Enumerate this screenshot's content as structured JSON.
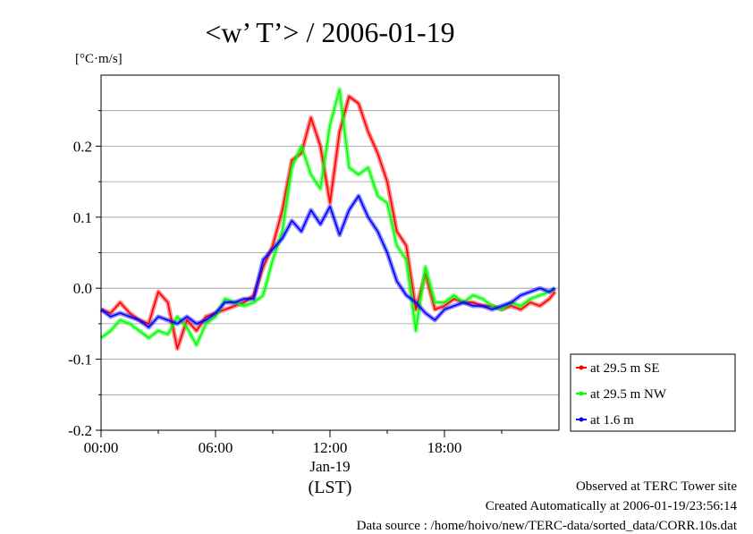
{
  "chart_data": {
    "type": "line",
    "title": "<w’ T’> / 2006-01-19",
    "ylabel": "[°C·m/s]",
    "xlabel": "(LST)",
    "date_label": "Jan-19",
    "x_ticks": [
      "00:00",
      "06:00",
      "12:00",
      "18:00"
    ],
    "y_ticks": [
      "-0.2",
      "-0.1",
      "0.0",
      "0.1",
      "0.2"
    ],
    "xlim": [
      0,
      24
    ],
    "ylim": [
      -0.2,
      0.3
    ],
    "grid": true,
    "legend_position": "right",
    "series": [
      {
        "name": "at 29.5 m SE",
        "color": "#ff0000",
        "x": [
          0,
          0.5,
          1,
          1.5,
          2,
          2.5,
          3,
          3.5,
          4,
          4.5,
          5,
          5.5,
          6,
          6.5,
          7,
          7.5,
          8,
          8.5,
          9,
          9.5,
          10,
          10.5,
          11,
          11.5,
          12,
          12.5,
          13,
          13.5,
          14,
          14.5,
          15,
          15.5,
          16,
          16.5,
          17,
          17.5,
          18,
          18.5,
          19,
          19.5,
          20,
          20.5,
          21,
          21.5,
          22,
          22.5,
          23,
          23.5,
          23.8
        ],
        "y": [
          -0.03,
          -0.035,
          -0.02,
          -0.035,
          -0.045,
          -0.05,
          -0.005,
          -0.02,
          -0.085,
          -0.045,
          -0.06,
          -0.04,
          -0.035,
          -0.03,
          -0.025,
          -0.02,
          -0.01,
          0.03,
          0.06,
          0.11,
          0.18,
          0.19,
          0.24,
          0.2,
          0.12,
          0.22,
          0.27,
          0.26,
          0.22,
          0.19,
          0.15,
          0.08,
          0.06,
          -0.03,
          0.02,
          -0.03,
          -0.025,
          -0.015,
          -0.02,
          -0.02,
          -0.025,
          -0.025,
          -0.03,
          -0.025,
          -0.03,
          -0.02,
          -0.025,
          -0.015,
          -0.005
        ]
      },
      {
        "name": "at 29.5 m NW",
        "color": "#00ff00",
        "x": [
          0,
          0.5,
          1,
          1.5,
          2,
          2.5,
          3,
          3.5,
          4,
          4.5,
          5,
          5.5,
          6,
          6.5,
          7,
          7.5,
          8,
          8.5,
          9,
          9.5,
          10,
          10.5,
          11,
          11.5,
          12,
          12.5,
          13,
          13.5,
          14,
          14.5,
          15,
          15.5,
          16,
          16.5,
          17,
          17.5,
          18,
          18.5,
          19,
          19.5,
          20,
          20.5,
          21,
          21.5,
          22,
          22.5,
          23,
          23.5,
          23.8
        ],
        "y": [
          -0.07,
          -0.06,
          -0.045,
          -0.05,
          -0.06,
          -0.07,
          -0.06,
          -0.065,
          -0.04,
          -0.055,
          -0.08,
          -0.05,
          -0.04,
          -0.015,
          -0.02,
          -0.025,
          -0.02,
          -0.01,
          0.04,
          0.08,
          0.17,
          0.2,
          0.16,
          0.14,
          0.23,
          0.28,
          0.17,
          0.16,
          0.17,
          0.13,
          0.12,
          0.06,
          0.04,
          -0.06,
          0.03,
          -0.02,
          -0.02,
          -0.01,
          -0.02,
          -0.01,
          -0.015,
          -0.025,
          -0.03,
          -0.02,
          -0.025,
          -0.015,
          -0.01,
          -0.005,
          0
        ]
      },
      {
        "name": "at 1.6 m",
        "color": "#0000ff",
        "x": [
          0,
          0.5,
          1,
          1.5,
          2,
          2.5,
          3,
          3.5,
          4,
          4.5,
          5,
          5.5,
          6,
          6.5,
          7,
          7.5,
          8,
          8.5,
          9,
          9.5,
          10,
          10.5,
          11,
          11.5,
          12,
          12.5,
          13,
          13.5,
          14,
          14.5,
          15,
          15.5,
          16,
          16.5,
          17,
          17.5,
          18,
          18.5,
          19,
          19.5,
          20,
          20.5,
          21,
          21.5,
          22,
          22.5,
          23,
          23.5,
          23.8
        ],
        "y": [
          -0.03,
          -0.04,
          -0.035,
          -0.04,
          -0.045,
          -0.055,
          -0.04,
          -0.045,
          -0.05,
          -0.04,
          -0.05,
          -0.045,
          -0.035,
          -0.02,
          -0.02,
          -0.015,
          -0.015,
          0.04,
          0.055,
          0.07,
          0.095,
          0.08,
          0.11,
          0.09,
          0.115,
          0.075,
          0.11,
          0.13,
          0.1,
          0.08,
          0.05,
          0.01,
          -0.01,
          -0.02,
          -0.035,
          -0.045,
          -0.03,
          -0.025,
          -0.02,
          -0.025,
          -0.025,
          -0.03,
          -0.025,
          -0.02,
          -0.01,
          -0.005,
          0,
          -0.005,
          0
        ]
      }
    ]
  },
  "footer": {
    "line1": "Observed at TERC Tower site",
    "line2": "Created Automatically at 2006-01-19/23:56:14",
    "line3": "Data source : /home/hoivo/new/TERC-data/sorted_data/CORR.10s.dat"
  }
}
